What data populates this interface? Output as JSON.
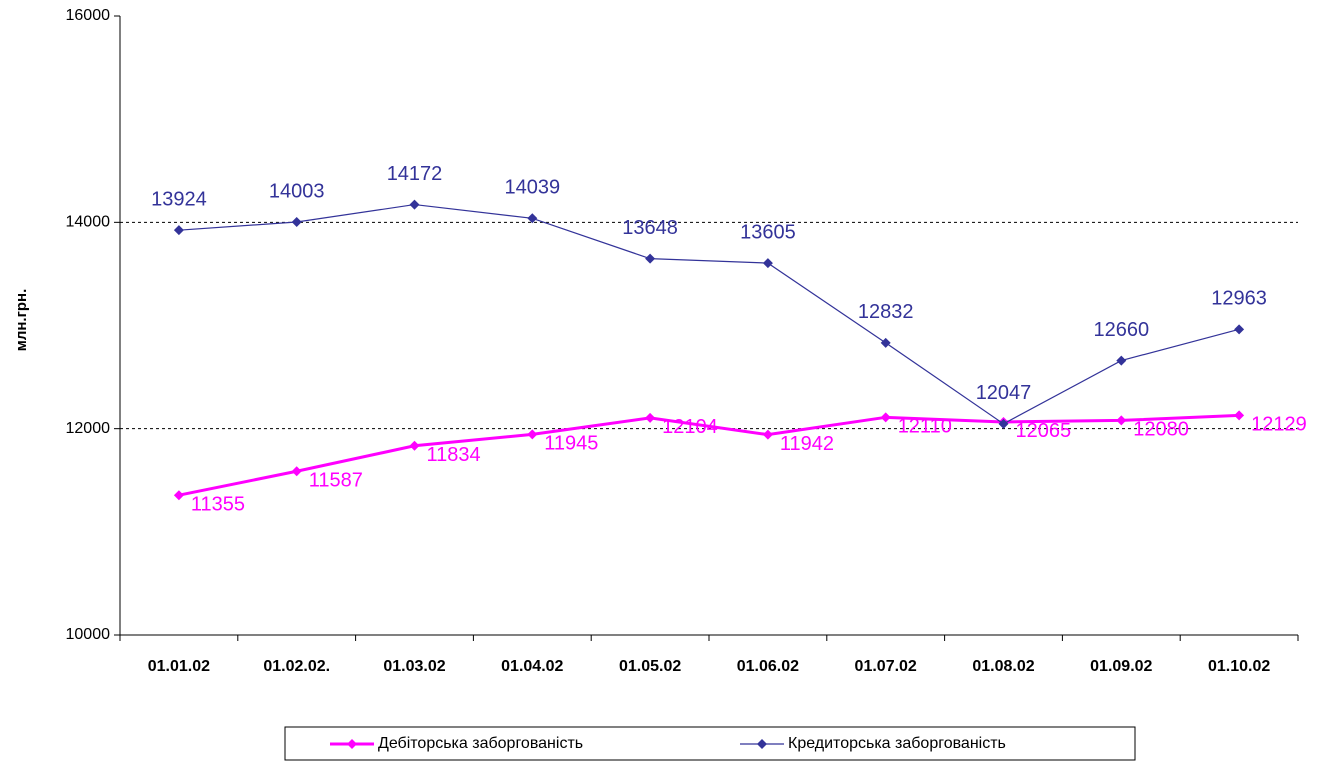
{
  "chart_data": {
    "type": "line",
    "y_label": "млн.грн.",
    "categories": [
      "01.01.02",
      "01.02.02.",
      "01.03.02",
      "01.04.02",
      "01.05.02",
      "01.06.02",
      "01.07.02",
      "01.08.02",
      "01.09.02",
      "01.10.02"
    ],
    "series": [
      {
        "name": "Дебіторська заборгованість",
        "color": "#ff00ff",
        "values": [
          11355,
          11587,
          11834,
          11945,
          12104,
          11942,
          12110,
          12065,
          12080,
          12129
        ]
      },
      {
        "name": "Кредиторська заборгованість",
        "color": "#333399",
        "values": [
          13924,
          14003,
          14172,
          14039,
          13648,
          13605,
          12832,
          12047,
          12660,
          12963
        ]
      }
    ],
    "ylim": [
      10000,
      16000
    ],
    "yticks": [
      10000,
      12000,
      14000,
      16000
    ],
    "grid": true,
    "legend": "bottom"
  }
}
